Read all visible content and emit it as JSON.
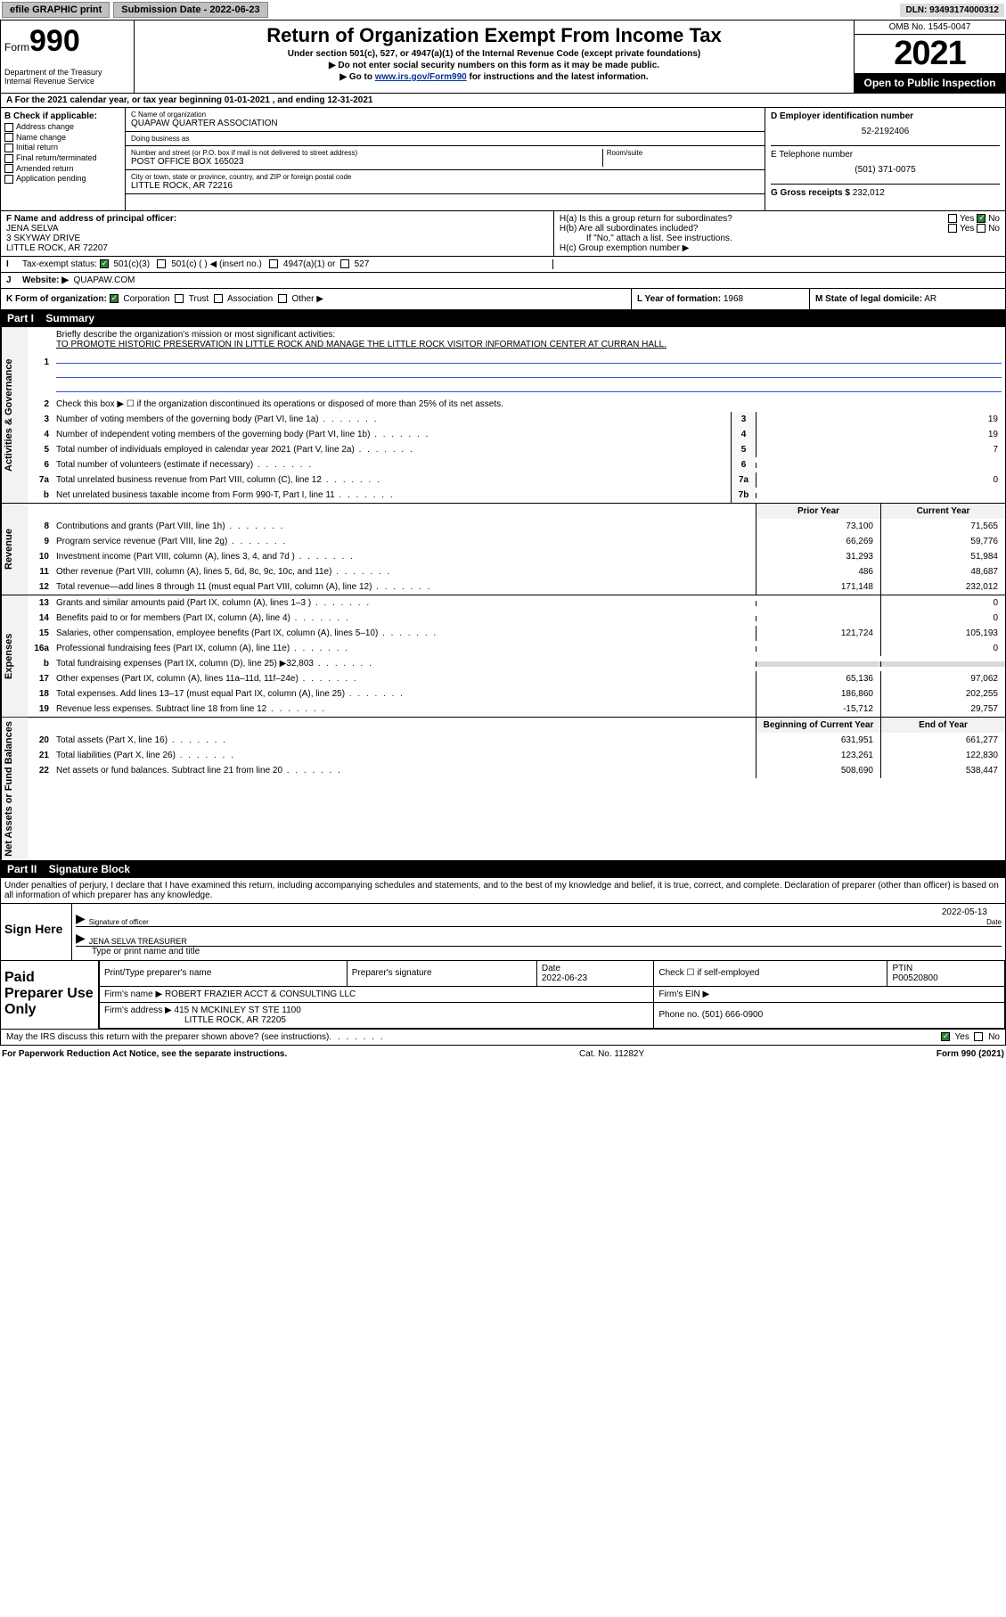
{
  "topbar": {
    "efile": "efile GRAPHIC print",
    "subm_label": "Submission Date - 2022-06-23",
    "dln": "DLN: 93493174000312"
  },
  "header": {
    "form_word": "Form",
    "form_num": "990",
    "dept": "Department of the Treasury\nInternal Revenue Service",
    "title": "Return of Organization Exempt From Income Tax",
    "sub1": "Under section 501(c), 527, or 4947(a)(1) of the Internal Revenue Code (except private foundations)",
    "sub2": "Do not enter social security numbers on this form as it may be made public.",
    "sub3_pre": "Go to ",
    "sub3_link": "www.irs.gov/Form990",
    "sub3_post": " for instructions and the latest information.",
    "omb": "OMB No. 1545-0047",
    "year": "2021",
    "open": "Open to Public Inspection"
  },
  "A": {
    "text": "For the 2021 calendar year, or tax year beginning 01-01-2021   , and ending 12-31-2021"
  },
  "B": {
    "label": "B Check if applicable:",
    "opts": [
      "Address change",
      "Name change",
      "Initial return",
      "Final return/terminated",
      "Amended return",
      "Application pending"
    ]
  },
  "C": {
    "name_label": "C Name of organization",
    "name": "QUAPAW QUARTER ASSOCIATION",
    "dba_label": "Doing business as",
    "dba": "",
    "addr_label": "Number and street (or P.O. box if mail is not delivered to street address)",
    "room_label": "Room/suite",
    "addr": "POST OFFICE BOX 165023",
    "city_label": "City or town, state or province, country, and ZIP or foreign postal code",
    "city": "LITTLE ROCK, AR   72216"
  },
  "D": {
    "label": "D Employer identification number",
    "val": "52-2192406"
  },
  "E": {
    "label": "E Telephone number",
    "val": "(501) 371-0075"
  },
  "G": {
    "label": "G Gross receipts $",
    "val": "232,012"
  },
  "F": {
    "label": "F  Name and address of principal officer:",
    "name": "JENA SELVA",
    "addr1": "3 SKYWAY DRIVE",
    "addr2": "LITTLE ROCK, AR  72207"
  },
  "H": {
    "a": "H(a)  Is this a group return for subordinates?",
    "b": "H(b)  Are all subordinates included?",
    "b_note": "If \"No,\" attach a list. See instructions.",
    "c": "H(c)  Group exemption number ▶",
    "yes": "Yes",
    "no": "No"
  },
  "I": {
    "label": "Tax-exempt status:",
    "o1": "501(c)(3)",
    "o2": "501(c) (  ) ◀ (insert no.)",
    "o3": "4947(a)(1) or",
    "o4": "527"
  },
  "J": {
    "label": "Website: ▶",
    "val": "QUAPAW.COM"
  },
  "K": {
    "label": "K Form of organization:",
    "o1": "Corporation",
    "o2": "Trust",
    "o3": "Association",
    "o4": "Other ▶"
  },
  "L": {
    "label": "L Year of formation:",
    "val": "1968"
  },
  "M": {
    "label": "M State of legal domicile:",
    "val": "AR"
  },
  "part1": {
    "title_part": "Part I",
    "title": "Summary",
    "mission_label": "Briefly describe the organization's mission or most significant activities:",
    "mission": "TO PROMOTE HISTORIC PRESERVATION IN LITTLE ROCK AND MANAGE THE LITTLE ROCK VISITOR INFORMATION CENTER AT CURRAN HALL.",
    "line2": "Check this box ▶ ☐  if the organization discontinued its operations or disposed of more than 25% of its net assets.",
    "col_prior": "Prior Year",
    "col_curr": "Current Year",
    "col_beg": "Beginning of Current Year",
    "col_end": "End of Year",
    "groups": {
      "gov": {
        "vlabel": "Activities & Governance",
        "rows": [
          {
            "n": "3",
            "d": "Number of voting members of the governing body (Part VI, line 1a)",
            "box": "3",
            "v": "19"
          },
          {
            "n": "4",
            "d": "Number of independent voting members of the governing body (Part VI, line 1b)",
            "box": "4",
            "v": "19"
          },
          {
            "n": "5",
            "d": "Total number of individuals employed in calendar year 2021 (Part V, line 2a)",
            "box": "5",
            "v": "7"
          },
          {
            "n": "6",
            "d": "Total number of volunteers (estimate if necessary)",
            "box": "6",
            "v": ""
          },
          {
            "n": "7a",
            "d": "Total unrelated business revenue from Part VIII, column (C), line 12",
            "box": "7a",
            "v": "0"
          },
          {
            "n": "b",
            "d": "Net unrelated business taxable income from Form 990-T, Part I, line 11",
            "box": "7b",
            "v": ""
          }
        ]
      },
      "rev": {
        "vlabel": "Revenue",
        "rows": [
          {
            "n": "8",
            "d": "Contributions and grants (Part VIII, line 1h)",
            "p": "73,100",
            "c": "71,565"
          },
          {
            "n": "9",
            "d": "Program service revenue (Part VIII, line 2g)",
            "p": "66,269",
            "c": "59,776"
          },
          {
            "n": "10",
            "d": "Investment income (Part VIII, column (A), lines 3, 4, and 7d )",
            "p": "31,293",
            "c": "51,984"
          },
          {
            "n": "11",
            "d": "Other revenue (Part VIII, column (A), lines 5, 6d, 8c, 9c, 10c, and 11e)",
            "p": "486",
            "c": "48,687"
          },
          {
            "n": "12",
            "d": "Total revenue—add lines 8 through 11 (must equal Part VIII, column (A), line 12)",
            "p": "171,148",
            "c": "232,012"
          }
        ]
      },
      "exp": {
        "vlabel": "Expenses",
        "rows": [
          {
            "n": "13",
            "d": "Grants and similar amounts paid (Part IX, column (A), lines 1–3 )",
            "p": "",
            "c": "0"
          },
          {
            "n": "14",
            "d": "Benefits paid to or for members (Part IX, column (A), line 4)",
            "p": "",
            "c": "0"
          },
          {
            "n": "15",
            "d": "Salaries, other compensation, employee benefits (Part IX, column (A), lines 5–10)",
            "p": "121,724",
            "c": "105,193"
          },
          {
            "n": "16a",
            "d": "Professional fundraising fees (Part IX, column (A), line 11e)",
            "p": "",
            "c": "0"
          },
          {
            "n": "b",
            "d": "Total fundraising expenses (Part IX, column (D), line 25) ▶32,803",
            "p": "__SHADE__",
            "c": "__SHADE__"
          },
          {
            "n": "17",
            "d": "Other expenses (Part IX, column (A), lines 11a–11d, 11f–24e)",
            "p": "65,136",
            "c": "97,062"
          },
          {
            "n": "18",
            "d": "Total expenses. Add lines 13–17 (must equal Part IX, column (A), line 25)",
            "p": "186,860",
            "c": "202,255"
          },
          {
            "n": "19",
            "d": "Revenue less expenses. Subtract line 18 from line 12",
            "p": "-15,712",
            "c": "29,757"
          }
        ]
      },
      "net": {
        "vlabel": "Net Assets or Fund Balances",
        "rows": [
          {
            "n": "20",
            "d": "Total assets (Part X, line 16)",
            "p": "631,951",
            "c": "661,277"
          },
          {
            "n": "21",
            "d": "Total liabilities (Part X, line 26)",
            "p": "123,261",
            "c": "122,830"
          },
          {
            "n": "22",
            "d": "Net assets or fund balances. Subtract line 21 from line 20",
            "p": "508,690",
            "c": "538,447"
          }
        ]
      }
    }
  },
  "part2": {
    "title_part": "Part II",
    "title": "Signature Block",
    "decl": "Under penalties of perjury, I declare that I have examined this return, including accompanying schedules and statements, and to the best of my knowledge and belief, it is true, correct, and complete. Declaration of preparer (other than officer) is based on all information of which preparer has any knowledge.",
    "sign_here": "Sign Here",
    "sig_officer": "Signature of officer",
    "sig_date": "2022-05-13",
    "date_lab": "Date",
    "name_title": "JENA SELVA  TREASURER",
    "name_lab": "Type or print name and title",
    "paid": "Paid Preparer Use Only",
    "pp_name_lab": "Print/Type preparer's name",
    "pp_sig_lab": "Preparer's signature",
    "pp_date_lab": "Date",
    "pp_date": "2022-06-23",
    "pp_check": "Check ☐ if self-employed",
    "ptin_lab": "PTIN",
    "ptin": "P00520800",
    "firm_name_lab": "Firm's name    ▶",
    "firm_name": "ROBERT FRAZIER ACCT & CONSULTING LLC",
    "firm_ein_lab": "Firm's EIN ▶",
    "firm_addr_lab": "Firm's address ▶",
    "firm_addr1": "415 N MCKINLEY ST STE 1100",
    "firm_addr2": "LITTLE ROCK, AR  72205",
    "phone_lab": "Phone no.",
    "phone": "(501) 666-0900",
    "discuss": "May the IRS discuss this return with the preparer shown above? (see instructions)",
    "yes": "Yes",
    "no": "No"
  },
  "footer": {
    "l": "For Paperwork Reduction Act Notice, see the separate instructions.",
    "m": "Cat. No. 11282Y",
    "r": "Form 990 (2021)"
  },
  "colors": {
    "link": "#003399",
    "checked": "#2e7d32",
    "shade": "#d9d9d9"
  }
}
